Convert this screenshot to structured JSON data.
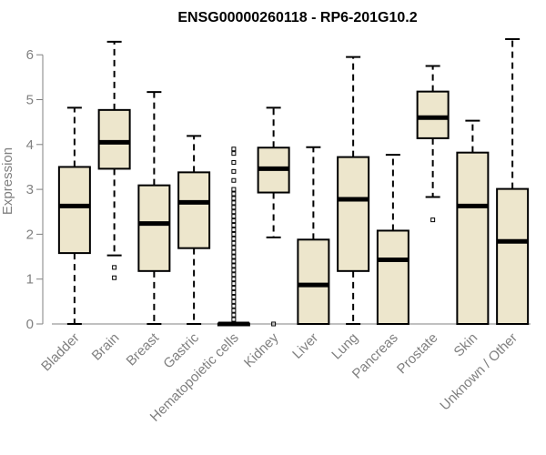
{
  "chart_data": {
    "type": "box",
    "title": "ENSG00000260118 - RP6-201G10.2",
    "ylabel": "Expression",
    "xlabel": "",
    "ylim": [
      0,
      6.3
    ],
    "yticks": [
      0,
      1,
      2,
      3,
      4,
      5,
      6
    ],
    "box_fill": "#ede6cc",
    "categories": [
      "Bladder",
      "Brain",
      "Breast",
      "Gastric",
      "Hematopoietic cells",
      "Kidney",
      "Liver",
      "Lung",
      "Pancreas",
      "Prostate",
      "Skin",
      "Unknown / Other"
    ],
    "boxes": [
      {
        "min": 0.0,
        "q1": 1.58,
        "median": 2.63,
        "q3": 3.5,
        "max": 4.82,
        "outliers": []
      },
      {
        "min": 1.53,
        "q1": 3.46,
        "median": 4.05,
        "q3": 4.77,
        "max": 6.29,
        "outliers": [
          1.26,
          1.03
        ]
      },
      {
        "min": 0.0,
        "q1": 1.18,
        "median": 2.24,
        "q3": 3.09,
        "max": 5.17,
        "outliers": []
      },
      {
        "min": 0.0,
        "q1": 1.69,
        "median": 2.71,
        "q3": 3.38,
        "max": 4.19,
        "outliers": []
      },
      {
        "min": 0.0,
        "q1": 0.0,
        "median": 0.0,
        "q3": 0.01,
        "max": 0.02,
        "outliers": [
          0.1,
          0.2,
          0.3,
          0.4,
          0.5,
          0.6,
          0.7,
          0.8,
          0.9,
          1.0,
          1.1,
          1.2,
          1.3,
          1.4,
          1.5,
          1.6,
          1.7,
          1.8,
          1.9,
          2.0,
          2.1,
          2.2,
          2.3,
          2.4,
          2.5,
          2.6,
          2.7,
          2.8,
          2.9,
          3.0,
          3.2,
          3.4,
          3.6,
          3.8,
          3.9
        ]
      },
      {
        "min": 1.93,
        "q1": 2.93,
        "median": 3.46,
        "q3": 3.93,
        "max": 4.82,
        "outliers": [
          0.0
        ]
      },
      {
        "min": 0.0,
        "q1": 0.0,
        "median": 0.87,
        "q3": 1.88,
        "max": 3.94,
        "outliers": []
      },
      {
        "min": 0.0,
        "q1": 1.18,
        "median": 2.78,
        "q3": 3.72,
        "max": 5.95,
        "outliers": []
      },
      {
        "min": 0.0,
        "q1": 0.0,
        "median": 1.43,
        "q3": 2.08,
        "max": 3.77,
        "outliers": []
      },
      {
        "min": 2.83,
        "q1": 4.14,
        "median": 4.6,
        "q3": 5.18,
        "max": 5.75,
        "outliers": [
          2.32
        ]
      },
      {
        "min": 0.0,
        "q1": 0.0,
        "median": 2.63,
        "q3": 3.82,
        "max": 4.53,
        "outliers": []
      },
      {
        "min": 0.0,
        "q1": 0.0,
        "median": 1.84,
        "q3": 3.01,
        "max": 6.35,
        "outliers": []
      }
    ]
  }
}
